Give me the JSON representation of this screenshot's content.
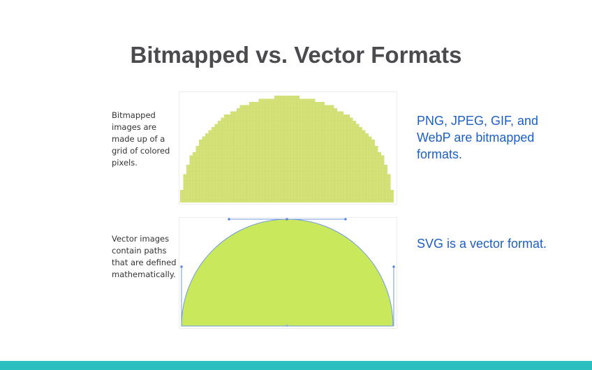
{
  "slide": {
    "title": "Bitmapped vs. Vector Formats",
    "bitmap_caption": "Bitmapped images are made up of a grid of colored pixels.",
    "vector_caption": "Vector images contain paths that are defined mathematically.",
    "bitmap_note": "PNG, JPEG, GIF, and WebP are bitmapped formats.",
    "vector_note": "SVG is a vector format."
  },
  "colors": {
    "title": "#4a4a4f",
    "note": "#1c5fc4",
    "bitmap_fill": "#d2df72",
    "vector_fill": "#c9e85c",
    "path_stroke": "#6f9be0",
    "footer_bar": "#2cbfbf"
  }
}
